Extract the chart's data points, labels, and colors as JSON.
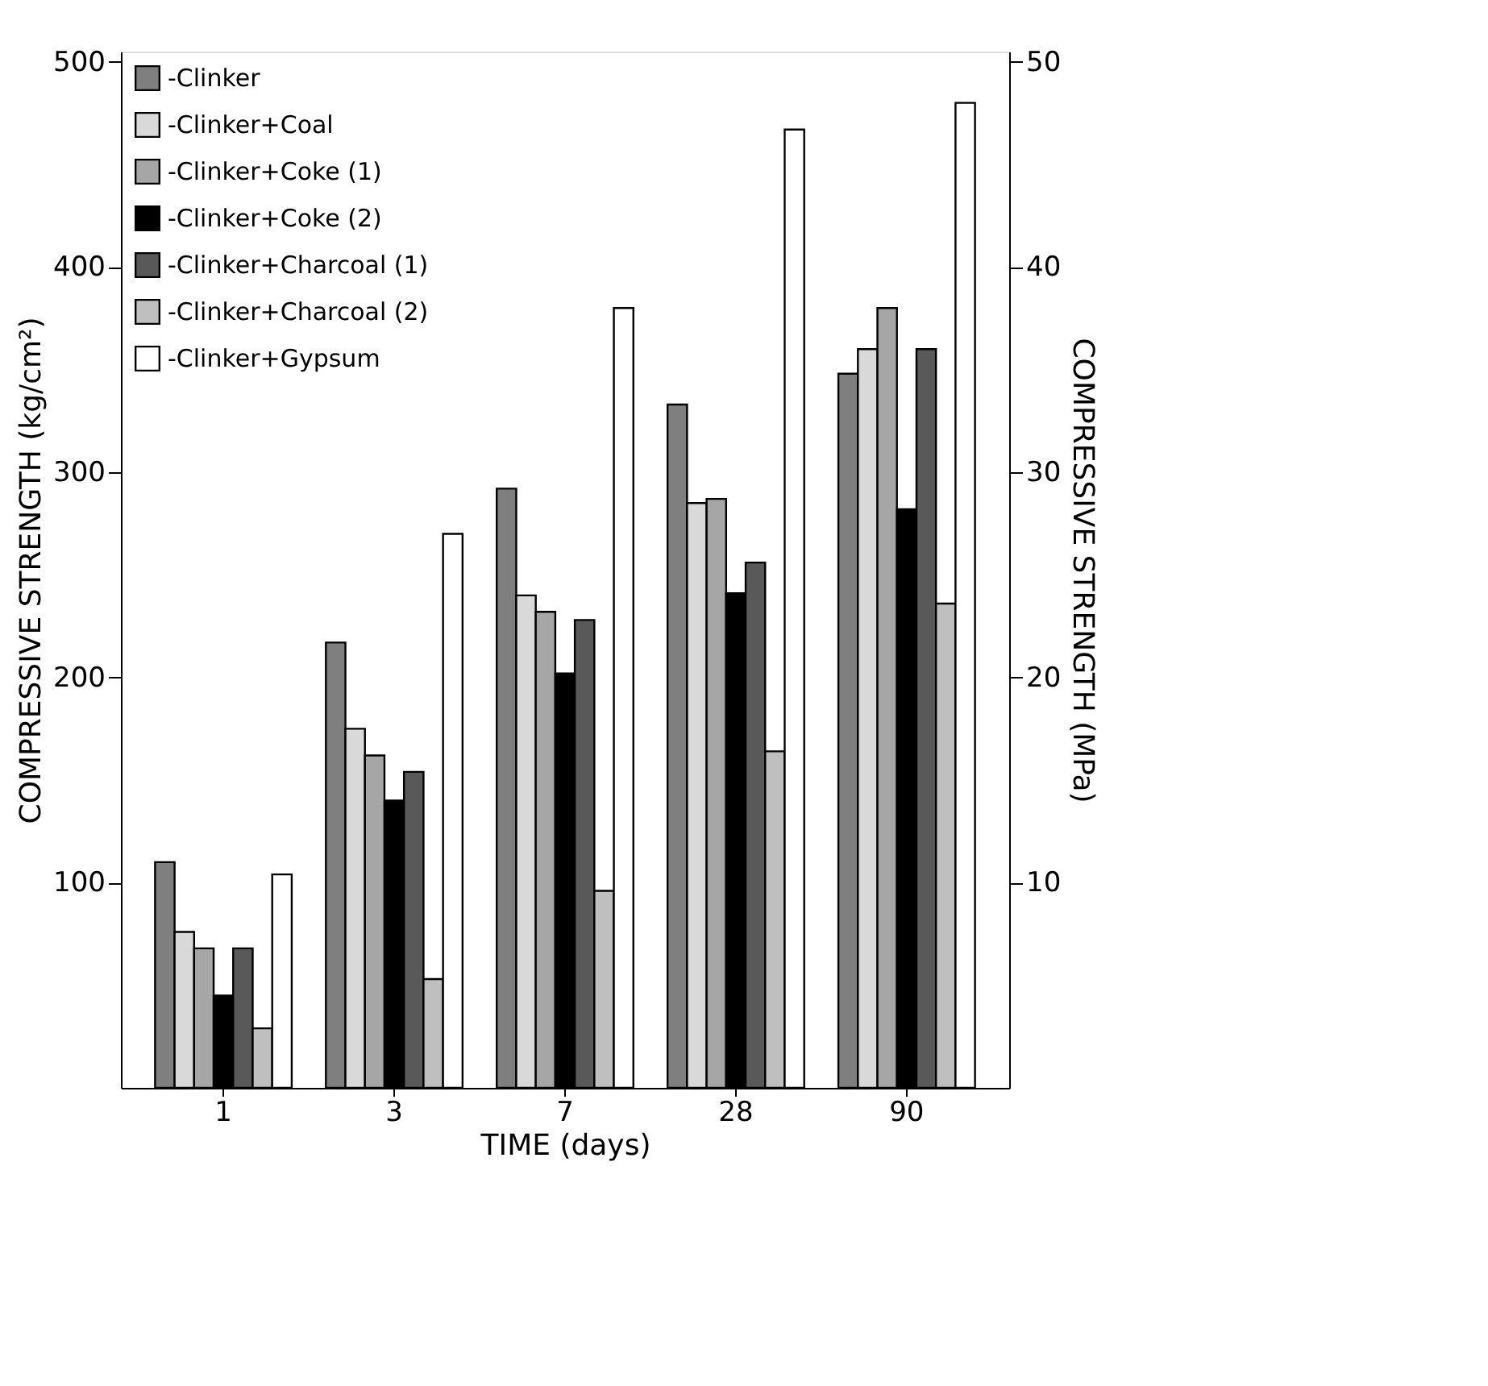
{
  "chart_data": {
    "type": "bar",
    "xlabel": "TIME (days)",
    "ylabel": "COMPRESSIVE STRENGTH (kg/cm²)",
    "y2label": "COMPRESSIVE STRENGTH (MPa)",
    "categories": [
      "1",
      "3",
      "7",
      "28",
      "90"
    ],
    "series": [
      {
        "name": "-Clinker",
        "color": "#7f7f7f",
        "values": [
          110,
          217,
          292,
          333,
          348
        ]
      },
      {
        "name": "-Clinker+Coal",
        "color": "#d9d9d9",
        "values": [
          76,
          175,
          240,
          285,
          360
        ]
      },
      {
        "name": "-Clinker+Coke (1)",
        "color": "#a6a6a6",
        "values": [
          68,
          162,
          232,
          287,
          380
        ]
      },
      {
        "name": "-Clinker+Coke (2)",
        "color": "#000000",
        "values": [
          45,
          140,
          202,
          241,
          282
        ]
      },
      {
        "name": "-Clinker+Charcoal (1)",
        "color": "#595959",
        "values": [
          68,
          154,
          228,
          256,
          360
        ]
      },
      {
        "name": "-Clinker+Charcoal (2)",
        "color": "#bfbfbf",
        "values": [
          29,
          53,
          96,
          164,
          236
        ]
      },
      {
        "name": "-Clinker+Gypsum",
        "color": "#ffffff",
        "values": [
          104,
          270,
          380,
          467,
          480
        ]
      }
    ],
    "ylim": [
      0,
      505
    ],
    "yticks": [
      100,
      200,
      300,
      400,
      500
    ],
    "y2lim": [
      0,
      50.5
    ],
    "y2ticks": [
      10,
      20,
      30,
      40,
      50
    ],
    "grid": false,
    "legend": "top left"
  }
}
